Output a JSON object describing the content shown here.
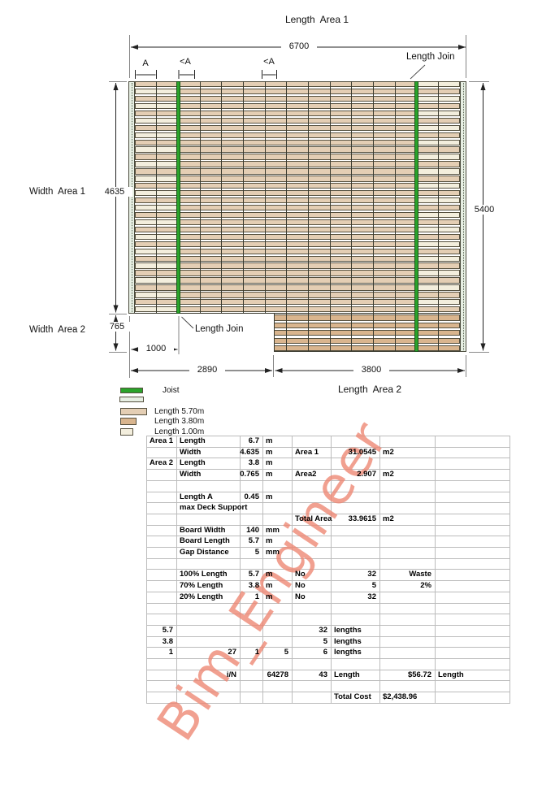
{
  "diagram": {
    "title": "Length  Area 1",
    "dim_length_total": "6700",
    "span_label_a": "A",
    "span_label_a2": "<A",
    "span_label_a3": "<A",
    "length_join_top": "Length Join",
    "width_area1": {
      "label": "Width  Area 1",
      "value": "4635"
    },
    "width_area2": {
      "label": "Width  Area 2",
      "value": "765"
    },
    "dim_height_total": "5400",
    "length_join_bottom": "Length Join",
    "dim_1000": "1000",
    "dim_2890": "2890",
    "dim_3800": "3800",
    "area2_title": "Length  Area 2"
  },
  "legend": {
    "joist": {
      "label": "Joist",
      "color": "#2aa32a"
    },
    "edge_color": "#e7efe3",
    "boards": [
      {
        "label": "Length 5.70m",
        "color": "#e4ceb4",
        "w": 33
      },
      {
        "label": "Length 3.80m",
        "color": "#d9b58e",
        "w": 20
      },
      {
        "label": "Length 1.00m",
        "color": "#f3eedd",
        "w": 16
      }
    ]
  },
  "deck": {
    "columns": 15,
    "area1_rows": 32,
    "area2_rows": 5,
    "board_5_7_color": "#e4ceb4",
    "board_3_8_color": "#d9b58e",
    "board_1_0_color": "#f3eedd",
    "joist_green": "#2aa32a"
  },
  "watermark": {
    "text": "Bim_Engineer",
    "color": "#ee8672"
  },
  "table": {
    "cells": [
      {
        "r": 0,
        "c": 0,
        "t": "Area 1",
        "a": "l"
      },
      {
        "r": 0,
        "c": 1,
        "t": "Length",
        "a": "l"
      },
      {
        "r": 0,
        "c": 2,
        "t": "6.7",
        "a": "r"
      },
      {
        "r": 0,
        "c": 3,
        "t": "m",
        "a": "l"
      },
      {
        "r": 1,
        "c": 1,
        "t": "Width",
        "a": "l"
      },
      {
        "r": 1,
        "c": 2,
        "t": "4.635",
        "a": "r"
      },
      {
        "r": 1,
        "c": 3,
        "t": "m",
        "a": "l"
      },
      {
        "r": 1,
        "c": 4,
        "t": "Area 1",
        "a": "l"
      },
      {
        "r": 1,
        "c": 5,
        "t": "31.0545",
        "a": "r"
      },
      {
        "r": 1,
        "c": 6,
        "t": "m2",
        "a": "l"
      },
      {
        "r": 2,
        "c": 0,
        "t": "Area 2",
        "a": "l"
      },
      {
        "r": 2,
        "c": 1,
        "t": "Length",
        "a": "l"
      },
      {
        "r": 2,
        "c": 2,
        "t": "3.8",
        "a": "r"
      },
      {
        "r": 2,
        "c": 3,
        "t": "m",
        "a": "l"
      },
      {
        "r": 3,
        "c": 1,
        "t": "Width",
        "a": "l"
      },
      {
        "r": 3,
        "c": 2,
        "t": "0.765",
        "a": "r"
      },
      {
        "r": 3,
        "c": 3,
        "t": "m",
        "a": "l"
      },
      {
        "r": 3,
        "c": 4,
        "t": "Area2",
        "a": "l"
      },
      {
        "r": 3,
        "c": 5,
        "t": "2.907",
        "a": "r"
      },
      {
        "r": 3,
        "c": 6,
        "t": "m2",
        "a": "l"
      },
      {
        "r": 5,
        "c": 1,
        "t": "Length A",
        "a": "l"
      },
      {
        "r": 5,
        "c": 2,
        "t": "0.45",
        "a": "r"
      },
      {
        "r": 5,
        "c": 3,
        "t": "m",
        "a": "l"
      },
      {
        "r": 6,
        "c": 1,
        "t": "max Deck Support",
        "a": "l",
        "s": 2
      },
      {
        "r": 7,
        "c": 4,
        "t": "Total Area",
        "a": "l"
      },
      {
        "r": 7,
        "c": 5,
        "t": "33.9615",
        "a": "r"
      },
      {
        "r": 7,
        "c": 6,
        "t": "m2",
        "a": "l"
      },
      {
        "r": 8,
        "c": 1,
        "t": "Board Width",
        "a": "l"
      },
      {
        "r": 8,
        "c": 2,
        "t": "140",
        "a": "r"
      },
      {
        "r": 8,
        "c": 3,
        "t": "mm",
        "a": "l"
      },
      {
        "r": 9,
        "c": 1,
        "t": "Board Length",
        "a": "l"
      },
      {
        "r": 9,
        "c": 2,
        "t": "5.7",
        "a": "r"
      },
      {
        "r": 9,
        "c": 3,
        "t": "m",
        "a": "l"
      },
      {
        "r": 10,
        "c": 1,
        "t": "Gap Distance",
        "a": "l"
      },
      {
        "r": 10,
        "c": 2,
        "t": "5",
        "a": "r"
      },
      {
        "r": 10,
        "c": 3,
        "t": "mm",
        "a": "l"
      },
      {
        "r": 12,
        "c": 1,
        "t": "100% Length",
        "a": "l"
      },
      {
        "r": 12,
        "c": 2,
        "t": "5.7",
        "a": "r"
      },
      {
        "r": 12,
        "c": 3,
        "t": "m",
        "a": "l"
      },
      {
        "r": 12,
        "c": 4,
        "t": "No",
        "a": "l"
      },
      {
        "r": 12,
        "c": 5,
        "t": "32",
        "a": "r"
      },
      {
        "r": 12,
        "c": 6,
        "t": "Waste",
        "a": "r"
      },
      {
        "r": 13,
        "c": 1,
        "t": "70% Length",
        "a": "l"
      },
      {
        "r": 13,
        "c": 2,
        "t": "3.8",
        "a": "r"
      },
      {
        "r": 13,
        "c": 3,
        "t": "m",
        "a": "l"
      },
      {
        "r": 13,
        "c": 4,
        "t": "No",
        "a": "l"
      },
      {
        "r": 13,
        "c": 5,
        "t": "5",
        "a": "r"
      },
      {
        "r": 13,
        "c": 6,
        "t": "2%",
        "a": "r"
      },
      {
        "r": 14,
        "c": 1,
        "t": "20% Length",
        "a": "l"
      },
      {
        "r": 14,
        "c": 2,
        "t": "1",
        "a": "r"
      },
      {
        "r": 14,
        "c": 3,
        "t": "m",
        "a": "l"
      },
      {
        "r": 14,
        "c": 4,
        "t": "No",
        "a": "l"
      },
      {
        "r": 14,
        "c": 5,
        "t": "32",
        "a": "r"
      },
      {
        "r": 17,
        "c": 0,
        "t": "5.7",
        "a": "r"
      },
      {
        "r": 17,
        "c": 4,
        "t": "32",
        "a": "r"
      },
      {
        "r": 17,
        "c": 5,
        "t": "lengths",
        "a": "l"
      },
      {
        "r": 18,
        "c": 0,
        "t": "3.8",
        "a": "r"
      },
      {
        "r": 18,
        "c": 4,
        "t": "5",
        "a": "r"
      },
      {
        "r": 18,
        "c": 5,
        "t": "lengths",
        "a": "l"
      },
      {
        "r": 19,
        "c": 0,
        "t": "1",
        "a": "r"
      },
      {
        "r": 19,
        "c": 1,
        "t": "27",
        "a": "r"
      },
      {
        "r": 19,
        "c": 2,
        "t": "1",
        "a": "r"
      },
      {
        "r": 19,
        "c": 3,
        "t": "5",
        "a": "r"
      },
      {
        "r": 19,
        "c": 4,
        "t": "6",
        "a": "r"
      },
      {
        "r": 19,
        "c": 5,
        "t": "lengths",
        "a": "l"
      },
      {
        "r": 21,
        "c": 1,
        "t": "i/N",
        "a": "r"
      },
      {
        "r": 21,
        "c": 2,
        "t": "64278",
        "a": "r",
        "s": 2
      },
      {
        "r": 21,
        "c": 4,
        "t": "43",
        "a": "r"
      },
      {
        "r": 21,
        "c": 5,
        "t": "Length",
        "a": "l"
      },
      {
        "r": 21,
        "c": 6,
        "t": "$56.72",
        "a": "r"
      },
      {
        "r": 21,
        "c": 7,
        "t": "Length",
        "a": "l"
      },
      {
        "r": 23,
        "c": 5,
        "t": "Total Cost",
        "a": "l"
      },
      {
        "r": 23,
        "c": 6,
        "t": "$2,438.96",
        "a": "l"
      }
    ]
  }
}
